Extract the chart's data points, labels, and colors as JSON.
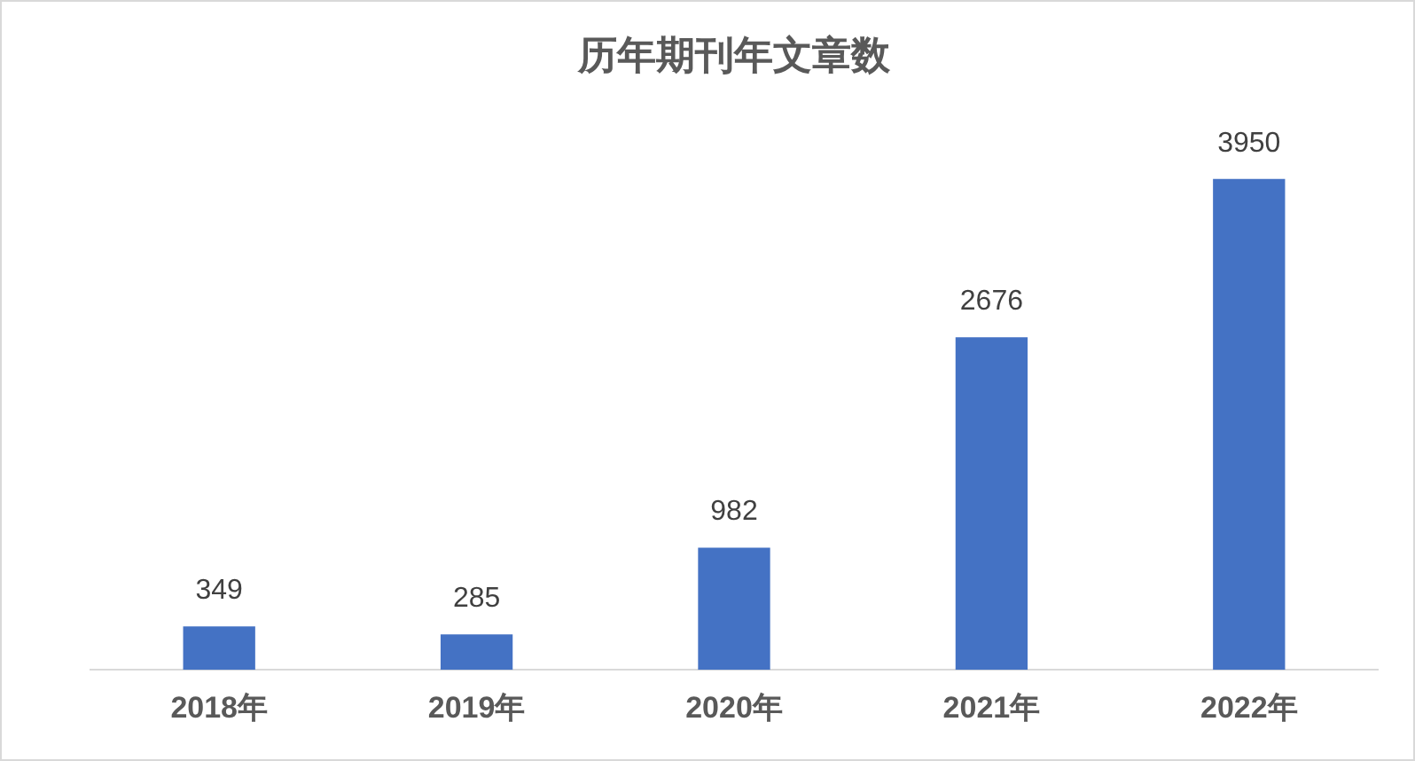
{
  "chart_data": {
    "type": "bar",
    "title": "历年期刊年文章数",
    "categories": [
      "2018年",
      "2019年",
      "2020年",
      "2021年",
      "2022年"
    ],
    "values": [
      349,
      285,
      982,
      2676,
      3950
    ],
    "color": "#4472c4",
    "data_labels": true,
    "grid": false,
    "legend": false
  }
}
